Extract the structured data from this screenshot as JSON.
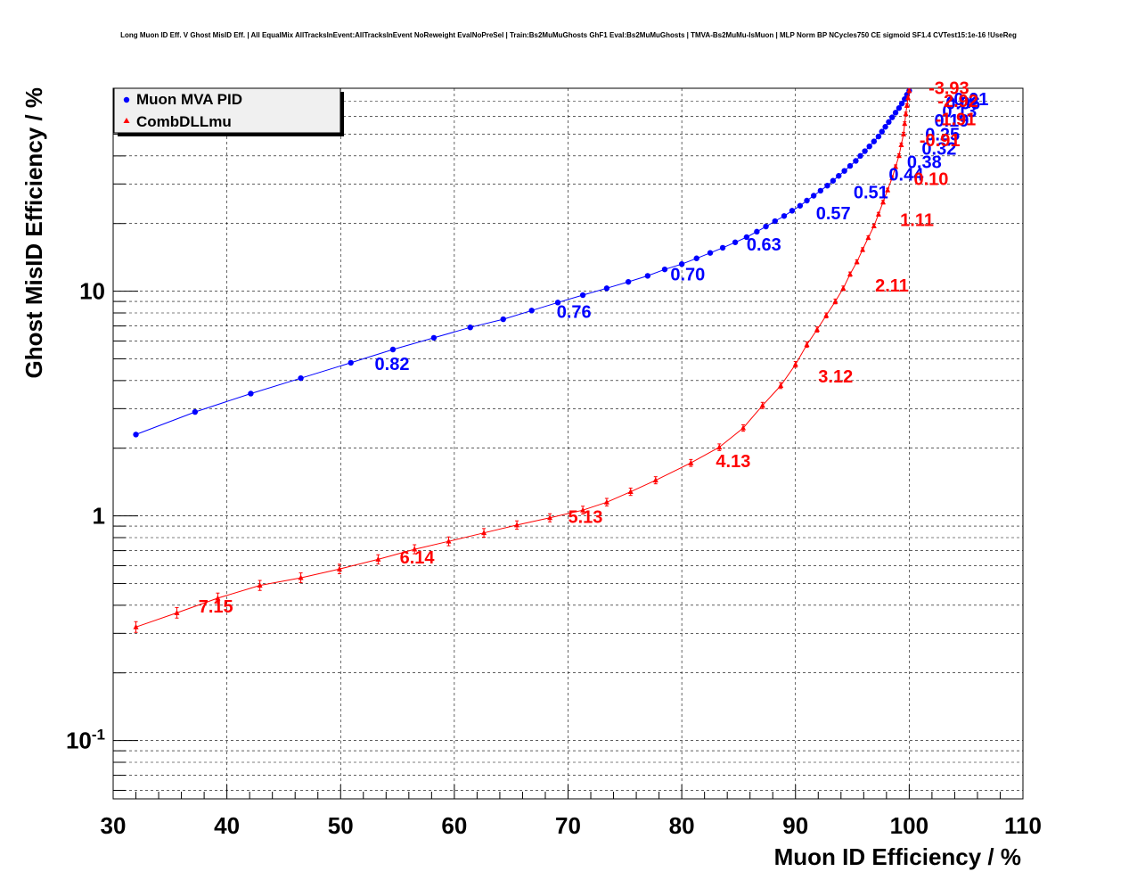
{
  "chart_data": {
    "type": "line",
    "title": "Long Muon ID Eff. V Ghost MisID Eff. | All EqualMix AllTracksInEvent:AllTracksInEvent NoReweight EvalNoPreSel | Train:Bs2MuMuGhosts GhF1 Eval:Bs2MuMuGhosts | TMVA-Bs2MuMu-IsMuon | MLP Norm BP NCycles750 CE sigmoid SF1.4 CVTest15:1e-16 !UseReg",
    "xlabel": "Muon ID Efficiency / %",
    "ylabel": "Ghost MisID Efficiency / %",
    "xlim": [
      30,
      110
    ],
    "ylim": [
      0.055,
      80
    ],
    "yscale": "log",
    "grid": true,
    "legend_position": "top-left",
    "x_ticks": [
      "30",
      "40",
      "50",
      "60",
      "70",
      "80",
      "90",
      "100",
      "110"
    ],
    "y_ticks": [
      {
        "value": 0.1,
        "base": "10",
        "exp": "-1"
      },
      {
        "value": 1,
        "base": "1",
        "exp": ""
      },
      {
        "value": 10,
        "base": "10",
        "exp": ""
      }
    ],
    "series": [
      {
        "name": "Muon MVA PID",
        "color": "#0000ff",
        "marker": "circle",
        "x": [
          32.0,
          37.2,
          42.1,
          46.5,
          50.9,
          54.6,
          58.2,
          61.4,
          64.3,
          66.8,
          69.1,
          71.3,
          73.4,
          75.3,
          77.0,
          78.5,
          80.0,
          81.3,
          82.5,
          83.6,
          84.7,
          85.7,
          86.6,
          87.4,
          88.2,
          89.0,
          89.7,
          90.4,
          91.0,
          91.6,
          92.2,
          92.8,
          93.3,
          93.8,
          94.3,
          94.8,
          95.3,
          95.7,
          96.1,
          96.5,
          96.9,
          97.3,
          97.6,
          97.9,
          98.2,
          98.5,
          98.8,
          99.1,
          99.35,
          99.6,
          99.8,
          100.0
        ],
        "y": [
          2.3,
          2.9,
          3.5,
          4.1,
          4.8,
          5.5,
          6.2,
          6.9,
          7.5,
          8.2,
          8.9,
          9.6,
          10.3,
          11.0,
          11.7,
          12.5,
          13.2,
          14.0,
          14.8,
          15.6,
          16.5,
          17.4,
          18.4,
          19.4,
          20.5,
          21.6,
          22.8,
          24.0,
          25.3,
          26.6,
          28.0,
          29.5,
          31.0,
          32.6,
          34.3,
          36.1,
          38.0,
          40.0,
          42.0,
          44.1,
          46.4,
          48.8,
          51.3,
          53.9,
          56.6,
          59.4,
          62.3,
          65.3,
          68.4,
          71.6,
          74.9,
          78.0
        ],
        "cut_labels": [
          {
            "text": "0.82",
            "x": 53.0,
            "y": 4.8
          },
          {
            "text": "0.76",
            "x": 69.0,
            "y": 8.2
          },
          {
            "text": "0.70",
            "x": 79.0,
            "y": 12.0
          },
          {
            "text": "0.63",
            "x": 85.7,
            "y": 16.3
          },
          {
            "text": "0.57",
            "x": 91.8,
            "y": 22.5
          },
          {
            "text": "0.51",
            "x": 95.1,
            "y": 27.8
          },
          {
            "text": "0.44",
            "x": 98.2,
            "y": 33.5
          },
          {
            "text": "0.38",
            "x": 99.8,
            "y": 38.0
          },
          {
            "text": "0.32",
            "x": 101.1,
            "y": 43.5
          },
          {
            "text": "0.25",
            "x": 101.4,
            "y": 50.5
          },
          {
            "text": "0.19",
            "x": 102.2,
            "y": 58.0
          },
          {
            "text": "0.13",
            "x": 102.9,
            "y": 64.0
          },
          {
            "text": "0.06",
            "x": 103.2,
            "y": 69.5
          },
          {
            "text": "-0.01",
            "x": 103.4,
            "y": 72.5
          }
        ]
      },
      {
        "name": "CombDLLmu",
        "color": "#ff0000",
        "marker": "triangle",
        "x": [
          32.0,
          35.6,
          39.2,
          42.9,
          46.5,
          49.9,
          53.3,
          56.5,
          59.5,
          62.6,
          65.5,
          68.4,
          71.3,
          73.4,
          75.5,
          77.7,
          80.8,
          83.3,
          85.4,
          87.1,
          88.7,
          90.0,
          91.0,
          91.9,
          92.7,
          93.5,
          94.2,
          94.8,
          95.4,
          95.9,
          96.4,
          96.9,
          97.3,
          97.7,
          98.1,
          98.5,
          98.8,
          99.1,
          99.3,
          99.5,
          99.6,
          99.7,
          99.8,
          99.9,
          100.0
        ],
        "y": [
          0.32,
          0.37,
          0.43,
          0.49,
          0.53,
          0.58,
          0.64,
          0.71,
          0.77,
          0.84,
          0.91,
          0.98,
          1.06,
          1.15,
          1.28,
          1.44,
          1.72,
          2.02,
          2.46,
          3.1,
          3.8,
          4.72,
          5.78,
          6.75,
          7.8,
          9.0,
          10.3,
          11.9,
          13.5,
          15.3,
          17.3,
          19.5,
          22.0,
          24.9,
          28.2,
          31.9,
          35.8,
          40.1,
          44.8,
          50.0,
          55.7,
          61.5,
          67.0,
          72.5,
          78.0
        ],
        "cut_labels": [
          {
            "text": "7.15",
            "x": 37.5,
            "y": 0.4
          },
          {
            "text": "6.14",
            "x": 55.2,
            "y": 0.66
          },
          {
            "text": "5.13",
            "x": 70.0,
            "y": 1.0
          },
          {
            "text": "4.13",
            "x": 83.0,
            "y": 1.77
          },
          {
            "text": "3.12",
            "x": 92.0,
            "y": 4.22
          },
          {
            "text": "2.11",
            "x": 97.0,
            "y": 10.7
          },
          {
            "text": "1.11",
            "x": 99.2,
            "y": 21.0
          },
          {
            "text": "0.10",
            "x": 100.4,
            "y": 32.0
          },
          {
            "text": "-0.91",
            "x": 100.9,
            "y": 47.5
          },
          {
            "text": "-1.91",
            "x": 102.3,
            "y": 59.0
          },
          {
            "text": "-2.92",
            "x": 102.5,
            "y": 71.0
          },
          {
            "text": "-3.93",
            "x": 101.7,
            "y": 81.0
          }
        ]
      }
    ]
  }
}
